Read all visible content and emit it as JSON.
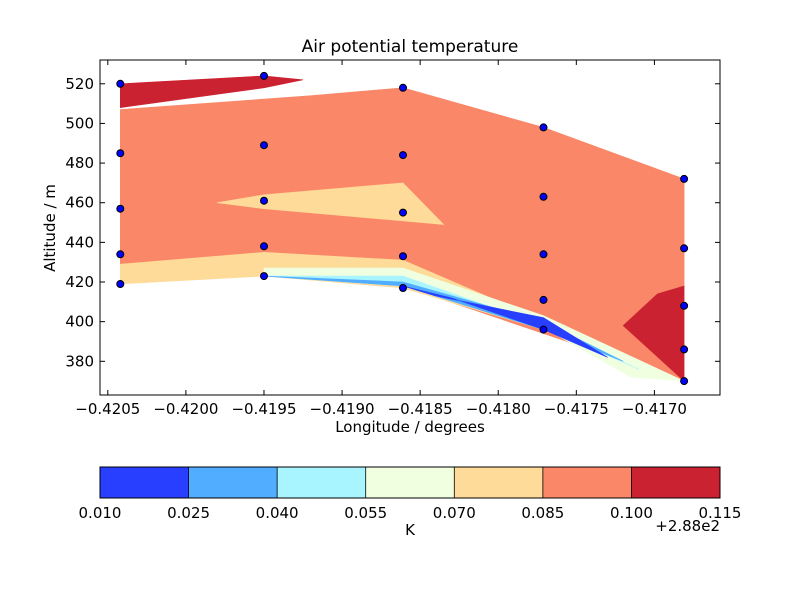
{
  "chart_data": {
    "type": "contourf",
    "title": "Air potential temperature",
    "xlabel": "Longitude / degrees",
    "ylabel": "Altitude / m",
    "xlim": [
      -0.42055,
      -0.41658
    ],
    "ylim": [
      363,
      532
    ],
    "xticks": [
      -0.4205,
      -0.42,
      -0.4195,
      -0.419,
      -0.4185,
      -0.418,
      -0.4175,
      -0.417
    ],
    "xtick_labels": [
      "−0.4205",
      "−0.4200",
      "−0.4195",
      "−0.4190",
      "−0.4185",
      "−0.4180",
      "−0.4175",
      "−0.4170"
    ],
    "yticks": [
      380,
      400,
      420,
      440,
      460,
      480,
      500,
      520
    ],
    "ytick_labels": [
      "380",
      "400",
      "420",
      "440",
      "460",
      "480",
      "500",
      "520"
    ],
    "levels": [
      0.01,
      0.025,
      0.04,
      0.055,
      0.07,
      0.085,
      0.1,
      0.115
    ],
    "colors": [
      "#283fff",
      "#50adff",
      "#a8f4ff",
      "#f0ffe0",
      "#ffdb99",
      "#fa8768",
      "#cb2232"
    ],
    "colorbar": {
      "label": "K",
      "tick_labels": [
        "0.010",
        "0.025",
        "0.040",
        "0.055",
        "0.070",
        "0.085",
        "0.100",
        "0.115"
      ],
      "offset_label": "+2.88e2"
    },
    "points": [
      {
        "x": -0.42042,
        "y": [
          419,
          434,
          457,
          485,
          520
        ]
      },
      {
        "x": -0.4195,
        "y": [
          423,
          438,
          461,
          489,
          524
        ]
      },
      {
        "x": -0.41861,
        "y": [
          417,
          433,
          455,
          484,
          518
        ]
      },
      {
        "x": -0.41771,
        "y": [
          396,
          411,
          434,
          463,
          498
        ]
      },
      {
        "x": -0.41681,
        "y": [
          370,
          386,
          408,
          437,
          472
        ]
      }
    ],
    "regions": [
      {
        "level_index": 5,
        "path": [
          [
            -0.42042,
            507
          ],
          [
            -0.4192,
            514
          ],
          [
            -0.41861,
            518
          ],
          [
            -0.41771,
            498
          ],
          [
            -0.41681,
            472
          ],
          [
            -0.41681,
            418
          ],
          [
            -0.41698,
            414
          ],
          [
            -0.4172,
            398
          ],
          [
            -0.41681,
            370
          ],
          [
            -0.41861,
            418
          ],
          [
            -0.42042,
            429
          ]
        ]
      },
      {
        "level_index": 6,
        "path": [
          [
            -0.42042,
            508
          ],
          [
            -0.42042,
            520
          ],
          [
            -0.4195,
            524
          ],
          [
            -0.41925,
            522
          ],
          [
            -0.4195,
            518
          ],
          [
            -0.42042,
            508
          ]
        ]
      },
      {
        "level_index": 6,
        "path": [
          [
            -0.4172,
            398
          ],
          [
            -0.41698,
            414
          ],
          [
            -0.41681,
            418
          ],
          [
            -0.41681,
            370
          ]
        ]
      },
      {
        "level_index": 4,
        "path": [
          [
            -0.42042,
            419
          ],
          [
            -0.4195,
            423
          ],
          [
            -0.41861,
            417
          ],
          [
            -0.41771,
            396
          ],
          [
            -0.41681,
            370
          ],
          [
            -0.41861,
            431
          ],
          [
            -0.4195,
            435
          ],
          [
            -0.42042,
            429
          ]
        ]
      },
      {
        "level_index": 4,
        "path": [
          [
            -0.4198,
            460
          ],
          [
            -0.4195,
            464
          ],
          [
            -0.41861,
            470
          ],
          [
            -0.41835,
            449
          ],
          [
            -0.4195,
            457
          ]
        ]
      },
      {
        "level_index": 3,
        "path": [
          [
            -0.4195,
            423
          ],
          [
            -0.41861,
            418
          ],
          [
            -0.41771,
            397
          ],
          [
            -0.41715,
            372
          ],
          [
            -0.41681,
            370
          ],
          [
            -0.41771,
            403
          ],
          [
            -0.41861,
            427
          ],
          [
            -0.4195,
            427
          ]
        ]
      },
      {
        "level_index": 2,
        "path": [
          [
            -0.4195,
            423
          ],
          [
            -0.41861,
            418
          ],
          [
            -0.41771,
            397
          ],
          [
            -0.4171,
            376
          ],
          [
            -0.41771,
            398
          ],
          [
            -0.41861,
            423
          ]
        ]
      },
      {
        "level_index": 1,
        "path": [
          [
            -0.4195,
            423
          ],
          [
            -0.41861,
            418
          ],
          [
            -0.41771,
            396
          ],
          [
            -0.4172,
            380
          ],
          [
            -0.41771,
            400
          ],
          [
            -0.41861,
            420
          ]
        ]
      },
      {
        "level_index": 0,
        "path": [
          [
            -0.41861,
            418
          ],
          [
            -0.4183,
            412
          ],
          [
            -0.41771,
            396
          ],
          [
            -0.4173,
            382
          ],
          [
            -0.41771,
            402
          ],
          [
            -0.4184,
            413
          ]
        ]
      }
    ]
  }
}
